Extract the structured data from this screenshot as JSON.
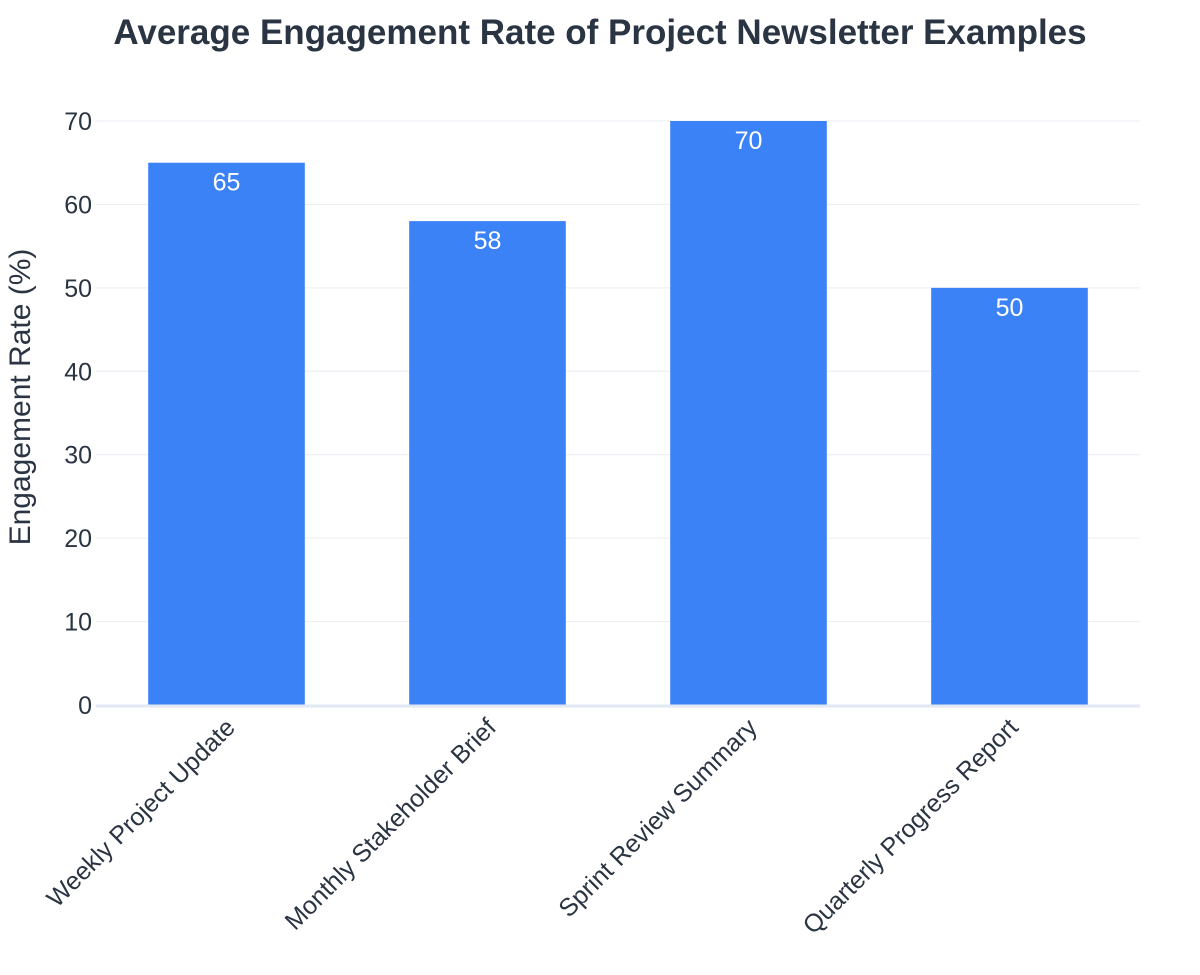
{
  "chart_data": {
    "type": "bar",
    "title": "Average Engagement Rate of Project Newsletter Examples",
    "xlabel": "",
    "ylabel": "Engagement Rate (%)",
    "categories": [
      "Weekly Project Update",
      "Monthly Stakeholder Brief",
      "Sprint Review Summary",
      "Quarterly Progress Report"
    ],
    "values": [
      65,
      58,
      70,
      50
    ],
    "data_labels": [
      "65",
      "58",
      "70",
      "50"
    ],
    "ylim": [
      0,
      70
    ],
    "yticks": [
      0,
      10,
      20,
      30,
      40,
      50,
      60,
      70
    ],
    "grid": true,
    "legend": "none",
    "bar_color": "#3b82f6",
    "label_color": "#ffffff",
    "text_color": "#2a3442"
  }
}
